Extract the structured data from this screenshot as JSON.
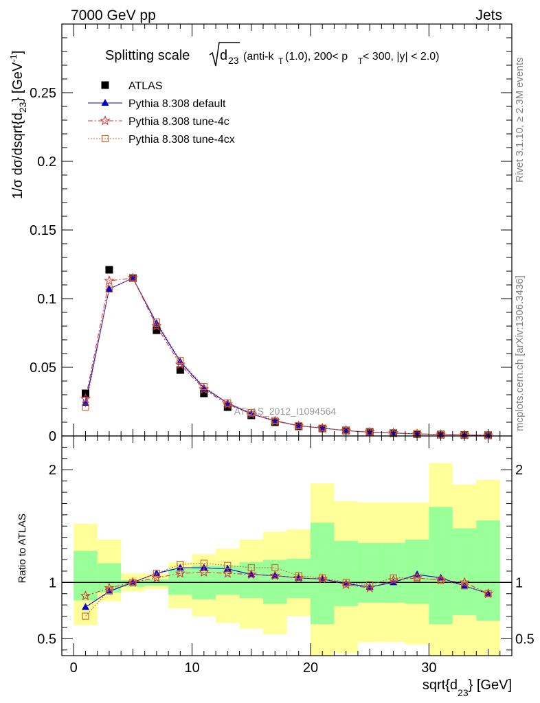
{
  "header": {
    "left": "7000 GeV pp",
    "right": "Jets"
  },
  "side_labels": {
    "rivet": "Rivet 3.1.10, ≥ 2.3M events",
    "mcplots": "mcplots.cern.ch [arXiv:1306.3436]"
  },
  "chart_data": [
    {
      "type": "scatter",
      "title": {
        "prefix": "Splitting scale",
        "sqrt_base": "d",
        "sqrt_sub": "23",
        "open": "(anti-k",
        "k_sub": "T",
        "middle": "(1.0), 200< p",
        "p_sub": "T",
        "tail": " < 300, |y| < 2.0)"
      },
      "ylabel": {
        "main": "1/σ dσ/dsqrt{d",
        "sub": "23",
        "close": "} [GeV",
        "sup": "-1",
        "end": "]"
      },
      "watermark": "ATLAS_2012_I1094564",
      "xlim": [
        -1,
        37
      ],
      "ylim": [
        0,
        0.3
      ],
      "yticks": [
        {
          "value": 0,
          "label": "0"
        },
        {
          "value": 0.05,
          "label": "0.05"
        },
        {
          "value": 0.1,
          "label": "0.1"
        },
        {
          "value": 0.15,
          "label": "0.15"
        },
        {
          "value": 0.2,
          "label": "0.2"
        },
        {
          "value": 0.25,
          "label": "0.25"
        }
      ],
      "x": [
        1,
        3,
        5,
        7,
        9,
        11,
        13,
        15,
        17,
        19,
        21,
        23,
        25,
        27,
        29,
        31,
        33,
        35
      ],
      "legend_position": "top-left",
      "series": [
        {
          "name": "ATLAS",
          "marker": "square-filled",
          "color": "#000000",
          "values": [
            0.031,
            0.121,
            0.115,
            0.077,
            0.048,
            0.031,
            0.021,
            0.015,
            0.01,
            0.007,
            0.0055,
            0.004,
            0.0029,
            0.0021,
            0.0014,
            0.001,
            0.0007,
            0.0005
          ]
        },
        {
          "name": "Pythia 8.308 default",
          "marker": "triangle-filled",
          "color": "#0000cc",
          "line": "solid",
          "values": [
            0.024,
            0.107,
            0.115,
            0.082,
            0.054,
            0.035,
            0.024,
            0.016,
            0.011,
            0.0075,
            0.0057,
            0.0039,
            0.0027,
            0.0021,
            0.0015,
            0.001,
            0.0007,
            0.0004
          ]
        },
        {
          "name": "Pythia 8.308 tune-4c",
          "marker": "star-open",
          "color": "#dd3333",
          "line": "dashdot",
          "values": [
            0.027,
            0.113,
            0.115,
            0.08,
            0.052,
            0.034,
            0.023,
            0.016,
            0.0108,
            0.0073,
            0.0057,
            0.0039,
            0.0028,
            0.0021,
            0.0015,
            0.001,
            0.0007,
            0.0004
          ]
        },
        {
          "name": "Pythia 8.308 tune-4cx",
          "marker": "square-open",
          "color": "#cc6633",
          "line": "dotted",
          "values": [
            0.021,
            0.107,
            0.115,
            0.083,
            0.055,
            0.036,
            0.024,
            0.017,
            0.0113,
            0.0075,
            0.0057,
            0.004,
            0.0028,
            0.0022,
            0.0015,
            0.001,
            0.0007,
            0.0004
          ]
        }
      ]
    },
    {
      "type": "line",
      "ylabel": "Ratio to ATLAS",
      "xlabel": {
        "main": "sqrt{d",
        "sub": "23",
        "end": "} [GeV]"
      },
      "xlim": [
        -1,
        37
      ],
      "ylim": [
        0.35,
        2.3
      ],
      "reference_line": 1,
      "xticks": [
        {
          "value": 0,
          "label": "0"
        },
        {
          "value": 10,
          "label": "10"
        },
        {
          "value": 20,
          "label": "20"
        },
        {
          "value": 30,
          "label": "30"
        }
      ],
      "yticks": [
        {
          "value": 0.5,
          "label": "0.5"
        },
        {
          "value": 1,
          "label": "1"
        },
        {
          "value": 2,
          "label": "2"
        }
      ],
      "band_edges": [
        0,
        2,
        4,
        6,
        8,
        10,
        12,
        14,
        16,
        18,
        20,
        22,
        24,
        26,
        28,
        30,
        32,
        34,
        36
      ],
      "band_colors": {
        "outer": "#ffff99",
        "inner": "#99ff99"
      },
      "outer_band": {
        "low": [
          0.62,
          0.83,
          0.92,
          0.94,
          0.77,
          0.7,
          0.64,
          0.59,
          0.54,
          0.7,
          0.35,
          0.37,
          0.47,
          0.47,
          0.45,
          0.35,
          0.35,
          0.35
        ],
        "high": [
          1.52,
          1.38,
          1.08,
          1.08,
          1.18,
          1.25,
          1.3,
          1.38,
          1.45,
          1.47,
          1.88,
          1.72,
          1.71,
          1.71,
          1.71,
          2.06,
          1.87,
          1.91
        ]
      },
      "inner_band": {
        "low": [
          0.84,
          0.91,
          0.96,
          0.97,
          0.89,
          0.85,
          0.89,
          0.86,
          0.81,
          0.86,
          0.63,
          0.79,
          0.82,
          0.82,
          0.81,
          0.63,
          0.71,
          0.66
        ],
        "high": [
          1.28,
          1.17,
          1.02,
          1.03,
          1.12,
          1.15,
          1.15,
          1.18,
          1.2,
          1.21,
          1.53,
          1.37,
          1.35,
          1.35,
          1.38,
          1.67,
          1.48,
          1.55
        ]
      },
      "x": [
        1,
        3,
        5,
        7,
        9,
        11,
        13,
        15,
        17,
        19,
        21,
        23,
        25,
        27,
        29,
        31,
        33,
        35
      ],
      "series": [
        {
          "name": "Pythia 8.308 default",
          "values": [
            0.78,
            0.92,
            1.0,
            1.08,
            1.13,
            1.13,
            1.12,
            1.07,
            1.06,
            1.04,
            1.03,
            0.99,
            0.96,
            1.0,
            1.07,
            1.04,
            0.97,
            0.9
          ]
        },
        {
          "name": "Pythia 8.308 tune-4c",
          "values": [
            0.88,
            0.95,
            1.0,
            1.04,
            1.08,
            1.09,
            1.08,
            1.07,
            1.06,
            1.04,
            1.03,
            0.98,
            0.95,
            1.02,
            1.04,
            1.02,
            1.0,
            0.9
          ]
        },
        {
          "name": "Pythia 8.308 tune-4cx",
          "values": [
            0.7,
            0.93,
            1.0,
            1.08,
            1.16,
            1.17,
            1.15,
            1.13,
            1.13,
            1.06,
            1.04,
            1.0,
            0.98,
            1.04,
            1.04,
            1.02,
            0.97,
            0.9
          ]
        }
      ]
    }
  ]
}
